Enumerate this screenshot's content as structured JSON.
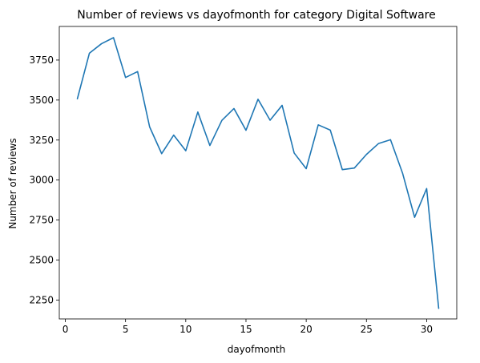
{
  "chart_data": {
    "type": "line",
    "title": "Number of reviews vs dayofmonth for category Digital Software",
    "xlabel": "dayofmonth",
    "ylabel": "Number of reviews",
    "xlim": [
      -0.5,
      32.5
    ],
    "ylim": [
      2132,
      3960
    ],
    "xticks": [
      0,
      5,
      10,
      15,
      20,
      25,
      30
    ],
    "yticks": [
      2250,
      2500,
      2750,
      3000,
      3250,
      3500,
      3750
    ],
    "grid": false,
    "line_color": "#1f77b4",
    "series": [
      {
        "x": [
          1,
          2,
          3,
          4,
          5,
          6,
          7,
          8,
          9,
          10,
          11,
          12,
          13,
          14,
          15,
          16,
          17,
          18,
          19,
          20,
          21,
          22,
          23,
          24,
          25,
          26,
          27,
          28,
          29,
          30,
          31
        ],
        "values": [
          3508,
          3793,
          3852,
          3890,
          3641,
          3678,
          3332,
          3165,
          3281,
          3183,
          3425,
          3216,
          3373,
          3447,
          3311,
          3505,
          3374,
          3467,
          3169,
          3071,
          3345,
          3312,
          3065,
          3075,
          3160,
          3228,
          3252,
          3043,
          2767,
          2947,
          2198
        ]
      }
    ]
  }
}
